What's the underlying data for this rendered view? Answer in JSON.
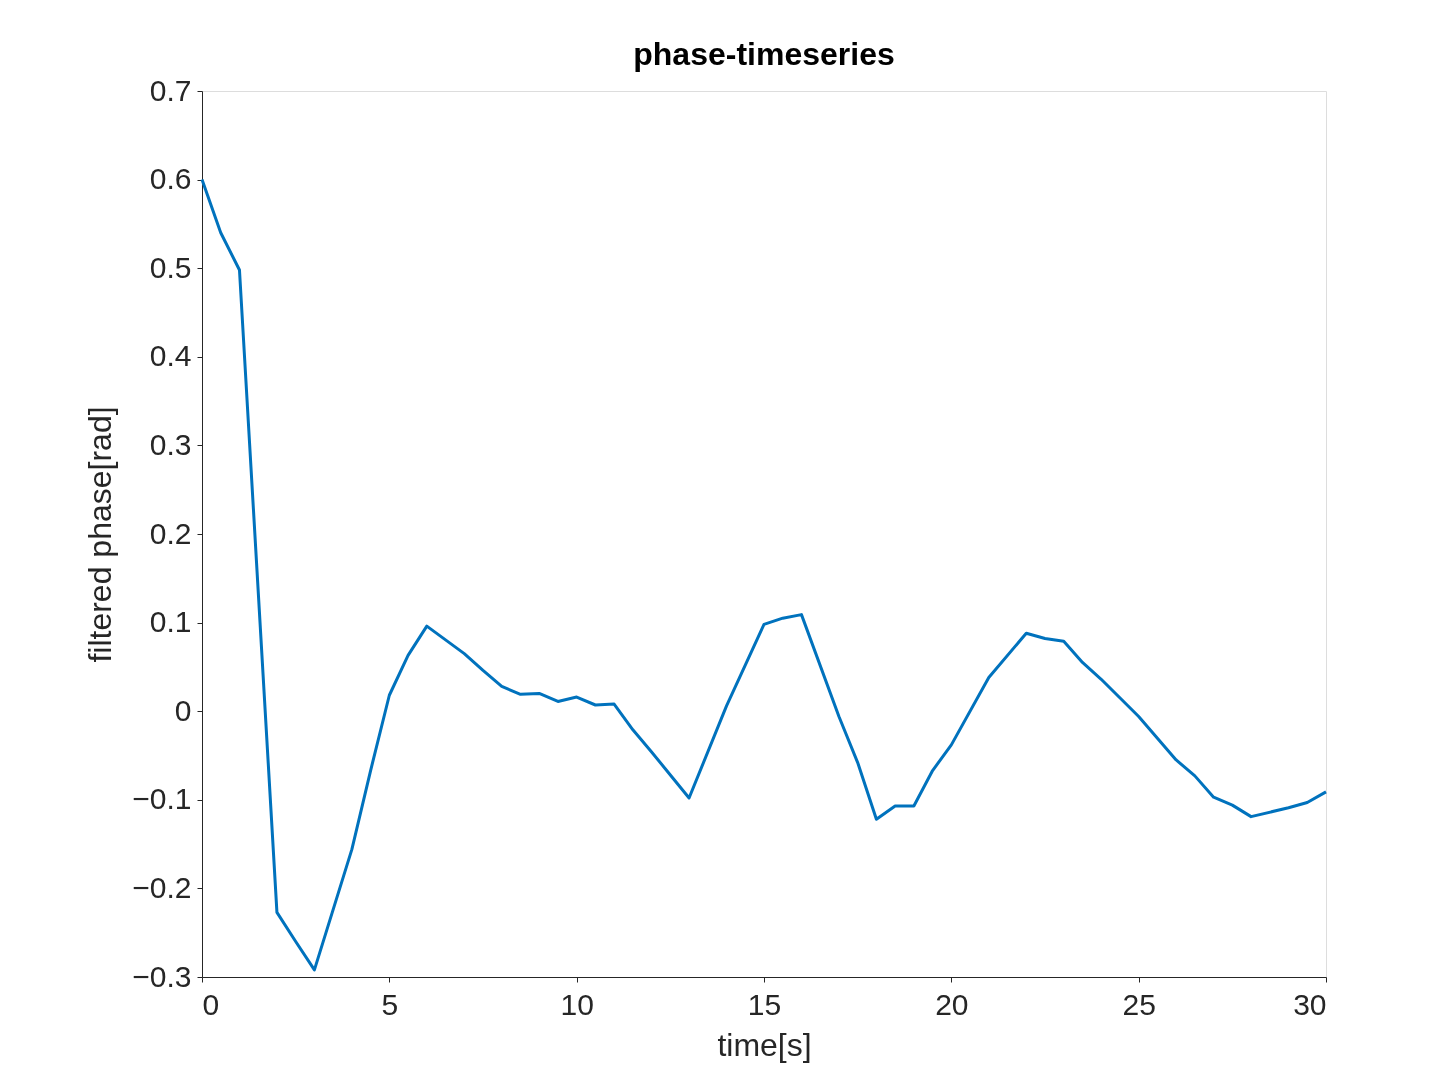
{
  "chart_data": {
    "type": "line",
    "title": "phase-timeseries",
    "xlabel": "time[s]",
    "ylabel": "filtered phase[rad]",
    "xlim": [
      0,
      30
    ],
    "xticks": [
      0,
      5,
      10,
      15,
      20,
      25,
      30
    ],
    "ylim": [
      -0.3,
      0.7
    ],
    "yticks": [
      -0.3,
      -0.2,
      -0.1,
      0,
      0.1,
      0.2,
      0.3,
      0.4,
      0.5,
      0.6,
      0.7
    ],
    "grid": false,
    "legend": false,
    "marker": "none",
    "line_style": "solid",
    "x": [
      0,
      0.5,
      1,
      2,
      2.5,
      3,
      4,
      4.5,
      5,
      5.5,
      6,
      7,
      7.5,
      8,
      8.5,
      9,
      9.5,
      10,
      10.5,
      11,
      11.5,
      12,
      12.5,
      13,
      14,
      15,
      15.5,
      16,
      17,
      17.5,
      18,
      18.5,
      19,
      19.5,
      20,
      21,
      22,
      22.5,
      23,
      23.5,
      24,
      25,
      26,
      26.5,
      27,
      27.5,
      28,
      29,
      29.5,
      30
    ],
    "series": [
      {
        "color": "#0072bd",
        "values": [
          0.6,
          0.54,
          0.498,
          -0.227,
          -0.26,
          -0.292,
          -0.156,
          -0.067,
          0.018,
          0.063,
          0.096,
          0.065,
          0.046,
          0.028,
          0.019,
          0.02,
          0.011,
          0.016,
          0.007,
          0.008,
          -0.021,
          -0.046,
          -0.072,
          -0.098,
          0.006,
          0.098,
          0.105,
          0.109,
          -0.006,
          -0.058,
          -0.122,
          -0.107,
          -0.107,
          -0.067,
          -0.038,
          0.038,
          0.088,
          0.082,
          0.079,
          0.055,
          0.036,
          -0.006,
          -0.055,
          -0.073,
          -0.097,
          -0.106,
          -0.119,
          -0.109,
          -0.103,
          -0.091
        ]
      }
    ]
  }
}
